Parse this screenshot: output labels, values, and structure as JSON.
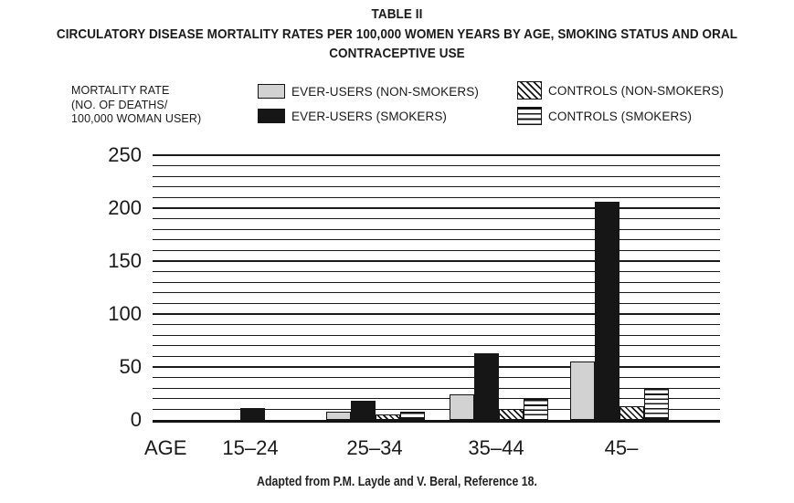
{
  "header": {
    "table_label": "TABLE II",
    "title_line_1": "CIRCULATORY DISEASE MORTALITY RATES PER 100,000 WOMEN YEARS BY AGE, SMOKING STATUS AND ORAL",
    "title_line_2": "CONTRACEPTIVE USE"
  },
  "y_axis_note_lines": [
    "MORTALITY RATE",
    "(NO. OF DEATHS/",
    "100,000 WOMAN USER)"
  ],
  "chart_data": {
    "type": "bar",
    "title": "CIRCULATORY DISEASE MORTALITY RATES PER 100,000 WOMEN YEARS BY AGE, SMOKING STATUS AND ORAL CONTRACEPTIVE USE",
    "ylabel": "MORTALITY RATE (NO. OF DEATHS/100,000 WOMAN USER)",
    "xlabel_prefix": "AGE",
    "categories": [
      "15–24",
      "25–34",
      "35–44",
      "45–"
    ],
    "series": [
      {
        "name": "EVER-USERS (NON-SMOKERS)",
        "pattern": "gray",
        "values": [
          0,
          8,
          24,
          55
        ]
      },
      {
        "name": "EVER-USERS (SMOKERS)",
        "pattern": "black",
        "values": [
          11,
          18,
          63,
          206
        ]
      },
      {
        "name": "CONTROLS (NON-SMOKERS)",
        "pattern": "hatch",
        "values": [
          0,
          5,
          10,
          13
        ]
      },
      {
        "name": "CONTROLS (SMOKERS)",
        "pattern": "hlines",
        "values": [
          0,
          8,
          20,
          30
        ]
      }
    ],
    "ylim": [
      0,
      250
    ],
    "yticks": [
      0,
      50,
      100,
      150,
      200,
      250
    ],
    "ytick_step": 50,
    "minor_grid_step": 10,
    "grid": "horizontal-major-and-minor",
    "legend_position": "top"
  },
  "footer": "Adapted from P.M. Layde and V. Beral, Reference 18.",
  "colors": {
    "ink": "#1a1a1a",
    "bar_black": "#161616",
    "bar_gray": "#d2d2d2",
    "background": "#ffffff"
  }
}
